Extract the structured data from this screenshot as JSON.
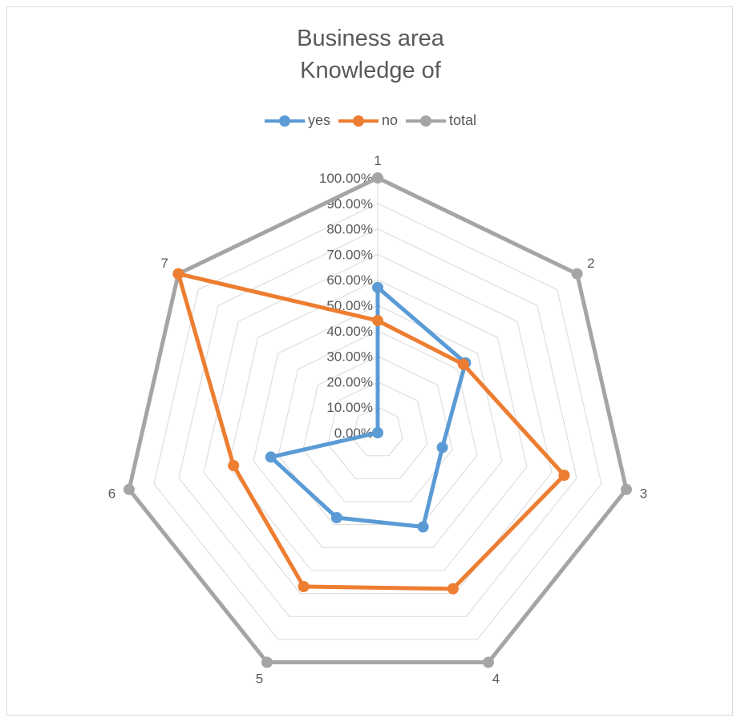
{
  "chart_data": {
    "type": "radar",
    "title_lines": [
      "Business area",
      "Knowledge of"
    ],
    "categories": [
      "1",
      "2",
      "3",
      "4",
      "5",
      "6",
      "7"
    ],
    "ticks": [
      "0.00%",
      "10.00%",
      "20.00%",
      "30.00%",
      "40.00%",
      "50.00%",
      "60.00%",
      "70.00%",
      "80.00%",
      "90.00%",
      "100.00%"
    ],
    "ylim": [
      0,
      1
    ],
    "grid": true,
    "legend_position": "top",
    "series": [
      {
        "name": "yes",
        "color": "#5b9bd5",
        "values": [
          0.57,
          0.44,
          0.26,
          0.41,
          0.37,
          0.43,
          0.0
        ]
      },
      {
        "name": "no",
        "color": "#ed7d31",
        "values": [
          0.44,
          0.43,
          0.75,
          0.68,
          0.67,
          0.58,
          1.0
        ]
      },
      {
        "name": "total",
        "color": "#a5a5a5",
        "values": [
          1.0,
          1.0,
          1.0,
          1.0,
          1.0,
          1.0,
          1.0
        ]
      }
    ]
  }
}
